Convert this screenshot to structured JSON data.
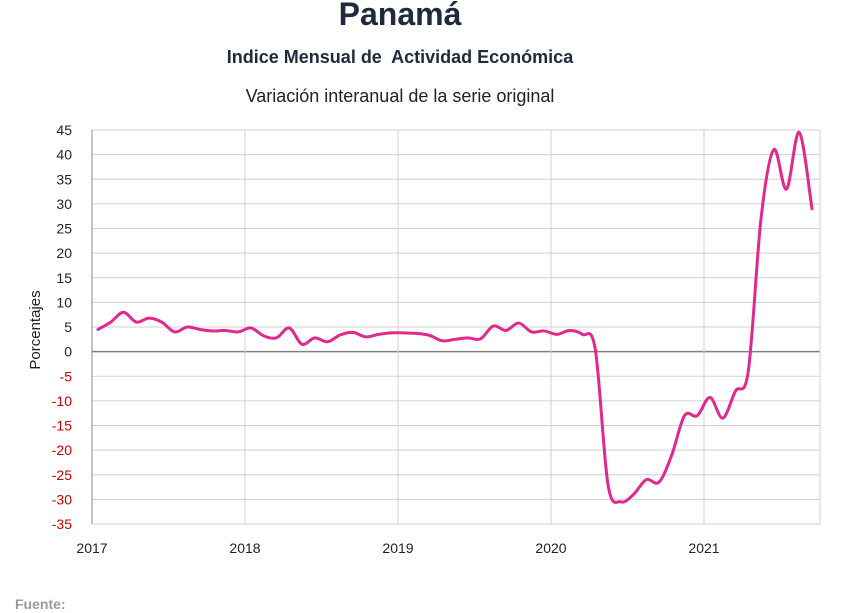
{
  "chart_data": {
    "type": "line",
    "title": "Panamá",
    "subtitle": "Indice Mensual de  Actividad Económica",
    "subtitle2": "Variación interanual de la serie original",
    "ylabel": "Porcentajes",
    "ylim": [
      -35,
      45
    ],
    "yticks": [
      45,
      40,
      35,
      30,
      25,
      20,
      15,
      10,
      5,
      0,
      -5,
      -10,
      -15,
      -20,
      -25,
      -30,
      -35
    ],
    "xticks": [
      "2017",
      "2018",
      "2019",
      "2020",
      "2021"
    ],
    "grid": true,
    "colors": {
      "line": "#e0288e",
      "positive_tick": "#222222",
      "negative_tick": "#cc0000",
      "grid": "#d0d0d0",
      "zero_line": "#808080"
    },
    "series": [
      {
        "x": [
          "2017-01",
          "2017-02",
          "2017-03",
          "2017-04",
          "2017-05",
          "2017-06",
          "2017-07",
          "2017-08",
          "2017-09",
          "2017-10",
          "2017-11",
          "2017-12",
          "2018-01",
          "2018-02",
          "2018-03",
          "2018-04",
          "2018-05",
          "2018-06",
          "2018-07",
          "2018-08",
          "2018-09",
          "2018-10",
          "2018-11",
          "2018-12",
          "2019-01",
          "2019-02",
          "2019-03",
          "2019-04",
          "2019-05",
          "2019-06",
          "2019-07",
          "2019-08",
          "2019-09",
          "2019-10",
          "2019-11",
          "2019-12",
          "2020-01",
          "2020-02",
          "2020-03",
          "2020-04",
          "2020-05",
          "2020-06",
          "2020-07",
          "2020-08",
          "2020-09",
          "2020-10",
          "2020-11",
          "2020-12",
          "2021-01",
          "2021-02",
          "2021-03",
          "2021-04",
          "2021-05",
          "2021-06",
          "2021-07",
          "2021-08",
          "2021-09"
        ],
        "values": [
          4.5,
          6.0,
          8.0,
          6.0,
          6.8,
          6.0,
          4.0,
          5.0,
          4.5,
          4.2,
          4.3,
          4.0,
          4.8,
          3.2,
          2.8,
          4.8,
          1.5,
          2.8,
          2.0,
          3.4,
          3.9,
          3.0,
          3.5,
          3.8,
          3.8,
          3.7,
          3.3,
          2.2,
          2.5,
          2.8,
          2.6,
          5.2,
          4.3,
          5.8,
          4.0,
          4.2,
          3.5,
          4.3,
          3.5,
          0.5,
          -27.0,
          -30.5,
          -29.0,
          -26.0,
          -26.5,
          -21.0,
          -13.0,
          -13.0,
          -9.3,
          -13.5,
          -8.0,
          -4.0,
          27.0,
          41.0,
          33.0,
          44.5,
          29.0
        ]
      }
    ]
  },
  "source_label": "Fuente:"
}
